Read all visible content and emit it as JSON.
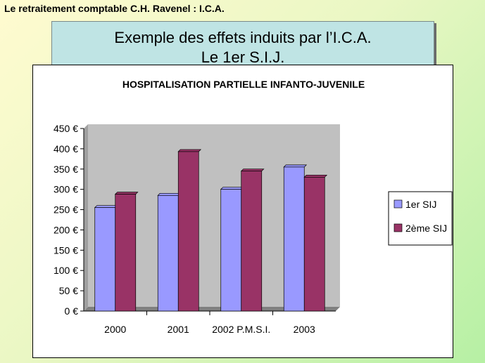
{
  "slide": {
    "header": "Le retraitement comptable C.H. Ravenel : I.C.A.",
    "title_line1": "Exemple des effets induits par l’I.C.A.",
    "title_line2": "Le 1er S.I.J."
  },
  "chart_data": {
    "type": "bar",
    "title": "HOSPITALISATION PARTIELLE INFANTO-JUVENILE",
    "categories": [
      "2000",
      "2001",
      "2002 P.M.S.I.",
      "2003"
    ],
    "series": [
      {
        "name": "1er SIJ",
        "values": [
          255,
          285,
          300,
          355
        ],
        "color": "#9999ff"
      },
      {
        "name": "2ème SIJ",
        "values": [
          288,
          393,
          345,
          330
        ],
        "color": "#993366"
      }
    ],
    "ylim": [
      0,
      450
    ],
    "yticks": [
      "0 €",
      "50 €",
      "100 €",
      "150 €",
      "200 €",
      "250 €",
      "300 €",
      "350 €",
      "400 €",
      "450 €"
    ],
    "plot_background": "#c0c0c0",
    "legend_position": "right",
    "grid": false
  }
}
